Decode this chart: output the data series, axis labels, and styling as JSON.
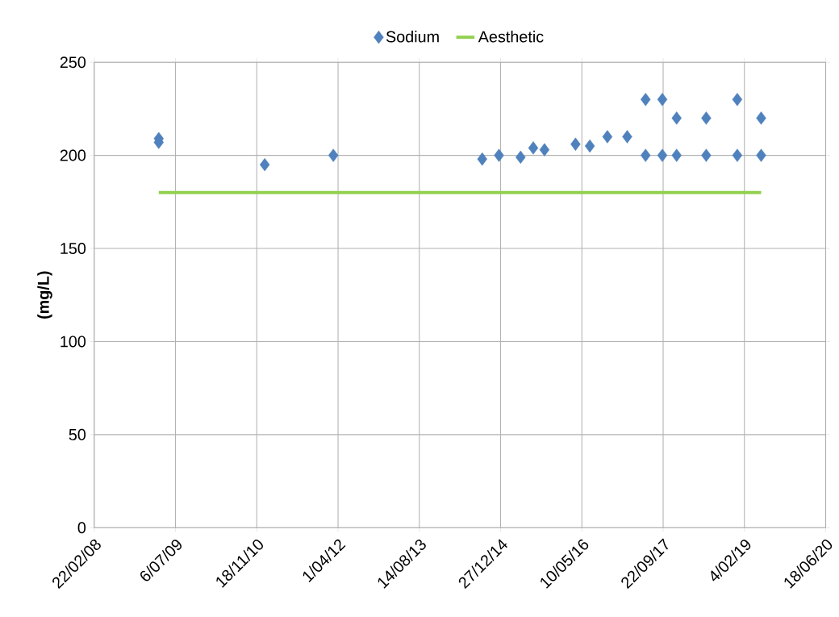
{
  "chart_data": {
    "type": "scatter",
    "ylabel": "(mg/L)",
    "series": [
      {
        "name": "Sodium",
        "marker": "diamond",
        "color": "#4f81bd",
        "x": [
          "2009-03-25",
          "2009-03-25",
          "2011-01-06",
          "2012-03-03",
          "2014-09-05",
          "2014-12-17",
          "2015-04-29",
          "2015-07-16",
          "2015-09-23",
          "2016-04-01",
          "2016-06-28",
          "2016-10-14",
          "2017-02-13",
          "2017-06-06",
          "2017-06-06",
          "2017-09-17",
          "2017-09-17",
          "2017-12-14",
          "2017-12-14",
          "2018-06-14",
          "2018-06-14",
          "2018-12-22",
          "2018-12-22",
          "2019-05-18",
          "2019-05-18"
        ],
        "values": [
          209,
          207,
          195,
          200,
          198,
          200,
          199,
          204,
          203,
          206,
          205,
          210,
          210,
          230,
          200,
          230,
          200,
          220,
          200,
          220,
          200,
          230,
          200,
          220,
          200
        ]
      },
      {
        "name": "Aesthetic",
        "type": "line",
        "marker": "none",
        "line_style": "solid",
        "color": "#92d050",
        "x": [
          "2009-03-25",
          "2019-05-18"
        ],
        "values": [
          180,
          180
        ]
      }
    ],
    "xlim": [
      "2008-02-22",
      "2020-06-18"
    ],
    "xticks": [
      {
        "value": "2008-02-22",
        "label": "22/02/08"
      },
      {
        "value": "2009-07-06",
        "label": "6/07/09"
      },
      {
        "value": "2010-11-18",
        "label": "18/11/10"
      },
      {
        "value": "2012-04-01",
        "label": "1/04/12"
      },
      {
        "value": "2013-08-14",
        "label": "14/08/13"
      },
      {
        "value": "2014-12-27",
        "label": "27/12/14"
      },
      {
        "value": "2016-05-10",
        "label": "10/05/16"
      },
      {
        "value": "2017-09-22",
        "label": "22/09/17"
      },
      {
        "value": "2019-02-04",
        "label": "4/02/19"
      },
      {
        "value": "2020-06-18",
        "label": "18/06/20"
      }
    ],
    "ylim": [
      0,
      250
    ],
    "yticks": [
      0,
      50,
      100,
      150,
      200,
      250
    ],
    "grid": true,
    "legend": "top"
  }
}
